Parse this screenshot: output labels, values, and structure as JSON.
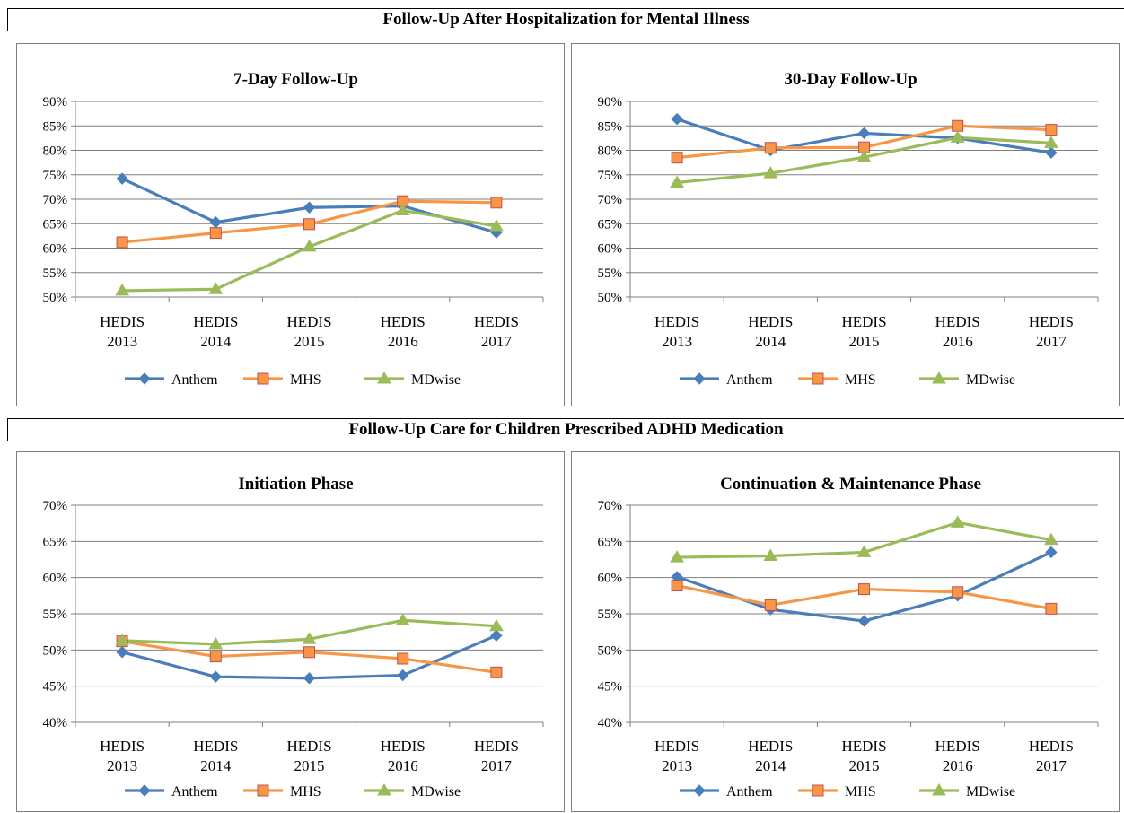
{
  "sections": [
    {
      "title": "Follow-Up After Hospitalization for Mental Illness"
    },
    {
      "title": "Follow-Up Care for Children Prescribed ADHD Medication"
    }
  ],
  "colors": {
    "Anthem": "#4a7ebb",
    "MHS": "#f79646",
    "MDwise": "#9bbb59",
    "MHS_marker_edge": "#c0504d"
  },
  "chart_data": [
    {
      "type": "line",
      "title": "7-Day Follow-Up",
      "categories": [
        [
          "HEDIS",
          "2013"
        ],
        [
          "HEDIS",
          "2014"
        ],
        [
          "HEDIS",
          "2015"
        ],
        [
          "HEDIS",
          "2016"
        ],
        [
          "HEDIS",
          "2017"
        ]
      ],
      "ylim": [
        0.5,
        0.9
      ],
      "yticks": [
        "50%",
        "55%",
        "60%",
        "65%",
        "70%",
        "75%",
        "80%",
        "85%",
        "90%"
      ],
      "grid": true,
      "legend": "bottom",
      "series": [
        {
          "name": "Anthem",
          "values": [
            0.742,
            0.653,
            0.683,
            0.686,
            0.632
          ]
        },
        {
          "name": "MHS",
          "values": [
            0.612,
            0.631,
            0.649,
            0.696,
            0.693
          ]
        },
        {
          "name": "MDwise",
          "values": [
            0.513,
            0.516,
            0.603,
            0.677,
            0.645
          ]
        }
      ]
    },
    {
      "type": "line",
      "title": "30-Day Follow-Up",
      "categories": [
        [
          "HEDIS",
          "2013"
        ],
        [
          "HEDIS",
          "2014"
        ],
        [
          "HEDIS",
          "2015"
        ],
        [
          "HEDIS",
          "2016"
        ],
        [
          "HEDIS",
          "2017"
        ]
      ],
      "ylim": [
        0.5,
        0.9
      ],
      "yticks": [
        "50%",
        "55%",
        "60%",
        "65%",
        "70%",
        "75%",
        "80%",
        "85%",
        "90%"
      ],
      "grid": true,
      "legend": "bottom",
      "series": [
        {
          "name": "Anthem",
          "values": [
            0.864,
            0.8,
            0.835,
            0.825,
            0.795
          ]
        },
        {
          "name": "MHS",
          "values": [
            0.785,
            0.805,
            0.806,
            0.85,
            0.842
          ]
        },
        {
          "name": "MDwise",
          "values": [
            0.734,
            0.753,
            0.786,
            0.826,
            0.815
          ]
        }
      ]
    },
    {
      "type": "line",
      "title": "Initiation  Phase",
      "categories": [
        [
          "HEDIS",
          "2013"
        ],
        [
          "HEDIS",
          "2014"
        ],
        [
          "HEDIS",
          "2015"
        ],
        [
          "HEDIS",
          "2016"
        ],
        [
          "HEDIS",
          "2017"
        ]
      ],
      "ylim": [
        0.4,
        0.7
      ],
      "yticks": [
        "40%",
        "45%",
        "50%",
        "55%",
        "60%",
        "65%",
        "70%"
      ],
      "grid": true,
      "legend": "bottom",
      "series": [
        {
          "name": "Anthem",
          "values": [
            0.497,
            0.463,
            0.461,
            0.465,
            0.52
          ]
        },
        {
          "name": "MHS",
          "values": [
            0.512,
            0.491,
            0.497,
            0.488,
            0.469
          ]
        },
        {
          "name": "MDwise",
          "values": [
            0.513,
            0.508,
            0.515,
            0.541,
            0.533
          ]
        }
      ]
    },
    {
      "type": "line",
      "title": "Continuation  & Maintenance Phase",
      "categories": [
        [
          "HEDIS",
          "2013"
        ],
        [
          "HEDIS",
          "2014"
        ],
        [
          "HEDIS",
          "2015"
        ],
        [
          "HEDIS",
          "2016"
        ],
        [
          "HEDIS",
          "2017"
        ]
      ],
      "ylim": [
        0.4,
        0.7
      ],
      "yticks": [
        "40%",
        "45%",
        "50%",
        "55%",
        "60%",
        "65%",
        "70%"
      ],
      "grid": true,
      "legend": "bottom",
      "series": [
        {
          "name": "Anthem",
          "values": [
            0.601,
            0.556,
            0.54,
            0.575,
            0.635
          ]
        },
        {
          "name": "MHS",
          "values": [
            0.589,
            0.562,
            0.584,
            0.58,
            0.557
          ]
        },
        {
          "name": "MDwise",
          "values": [
            0.628,
            0.63,
            0.635,
            0.676,
            0.652
          ]
        }
      ]
    }
  ]
}
